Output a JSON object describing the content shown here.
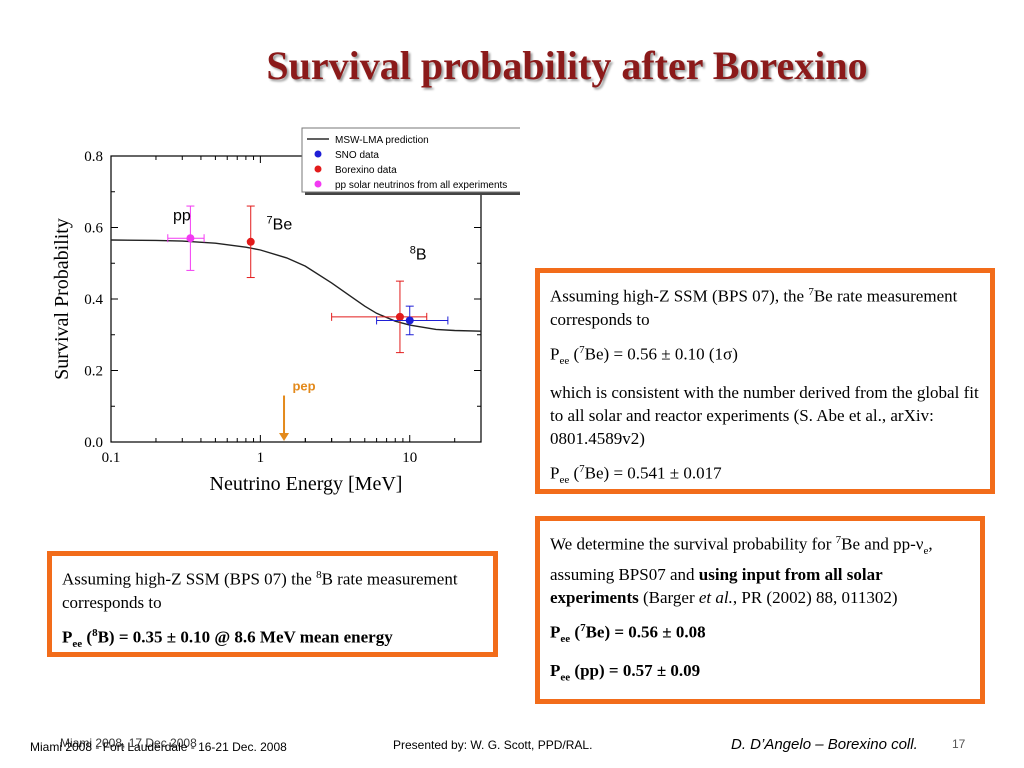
{
  "slide": {
    "title": "Survival probability after Borexino"
  },
  "chart_data": {
    "type": "scatter",
    "xscale": "log",
    "xlim": [
      0.1,
      30
    ],
    "ylim": [
      0.0,
      0.8
    ],
    "xlabel": "Neutrino Energy [MeV]",
    "ylabel": "Survival Probability",
    "xticks": [
      "0.1",
      "1",
      "10"
    ],
    "yticks": [
      "0.0",
      "0.2",
      "0.4",
      "0.6",
      "0.8"
    ],
    "legend_position": "top-right",
    "legend": [
      {
        "label": "MSW-LMA prediction",
        "kind": "line",
        "color": "#000000"
      },
      {
        "label": "SNO data",
        "kind": "dot",
        "color": "#1f1fd6"
      },
      {
        "label": "Borexino data",
        "kind": "dot",
        "color": "#e21b1b"
      },
      {
        "label": "pp solar neutrinos from all experiments",
        "kind": "dot",
        "color": "#f23af2"
      }
    ],
    "curve": {
      "name": "MSW-LMA prediction",
      "x": [
        0.1,
        0.2,
        0.3,
        0.5,
        0.8,
        1.0,
        1.5,
        2.0,
        3.0,
        4.0,
        5.0,
        6.0,
        8.0,
        10.0,
        15.0,
        20.0,
        30.0
      ],
      "y": [
        0.565,
        0.564,
        0.562,
        0.556,
        0.545,
        0.537,
        0.515,
        0.492,
        0.445,
        0.408,
        0.38,
        0.36,
        0.338,
        0.327,
        0.315,
        0.312,
        0.31
      ]
    },
    "points": [
      {
        "label": "pp",
        "x": 0.34,
        "y": 0.57,
        "yerr": [
          0.09,
          0.09
        ],
        "xerr": [
          0.1,
          0.08
        ],
        "color": "#f23af2"
      },
      {
        "label": "7Be",
        "x": 0.862,
        "y": 0.56,
        "yerr": [
          0.1,
          0.1
        ],
        "xerr": [
          0,
          0
        ],
        "color": "#e21b1b"
      },
      {
        "label": "8B",
        "x": 8.6,
        "y": 0.35,
        "yerr": [
          0.1,
          0.1
        ],
        "xerr": [
          5.6,
          4.4
        ],
        "color": "#e21b1b"
      },
      {
        "label": "",
        "x": 10.0,
        "y": 0.34,
        "yerr": [
          0.04,
          0.04
        ],
        "xerr": [
          4.0,
          8.0
        ],
        "color": "#1f1fd6"
      }
    ],
    "annotations": [
      {
        "text": "pp",
        "sup": "",
        "x": 0.26,
        "y": 0.62
      },
      {
        "text": "Be",
        "sup": "7",
        "x": 1.1,
        "y": 0.595
      },
      {
        "text": "B",
        "sup": "8",
        "x": 10.0,
        "y": 0.51
      }
    ],
    "arrow": {
      "label": "pep",
      "x": 1.44,
      "y_from": 0.13,
      "y_to": 0.0,
      "color": "#e38a1c"
    }
  },
  "box_be7": {
    "line1a": "Assuming high-Z SSM (BPS 07), the ",
    "line1sup": "7",
    "line1b": "Be rate measurement corresponds to",
    "line2a": "P",
    "line2sub": "ee",
    "line2b": " (",
    "line2sup": "7",
    "line2c": "Be) = 0.56 ± 0.10 (1σ)",
    "line3": "which is consistent with the number derived from the global fit to all solar and reactor experiments (S. Abe et al., arXiv: 0801.4589v2)",
    "line4a": "P",
    "line4sub": "ee",
    "line4b": " (",
    "line4sup": "7",
    "line4c": "Be) = 0.541 ± 0.017"
  },
  "box_all": {
    "line1a": "We determine the survival probability for ",
    "line1sup": "7",
    "line1b": "Be and pp-ν",
    "line1sub": "e",
    "line1c": ", assuming BPS07 and ",
    "line1bold": "using input from all solar experiments",
    "line1d": " (Barger ",
    "line1ital": "et al.",
    "line1e": ", PR (2002) 88, 011302)",
    "line2a": "P",
    "line2sub": "ee",
    "line2b": " (",
    "line2sup": "7",
    "line2c": "Be) = 0.56 ± 0.08",
    "line3a": "P",
    "line3sub": "ee",
    "line3b": " (pp) = 0.57 ± 0.09"
  },
  "box_b8": {
    "line1a": "Assuming high-Z SSM (BPS 07) the ",
    "line1sup": "8",
    "line1b": "B rate measurement corresponds to",
    "line2a": "P",
    "line2sub": "ee",
    "line2b": " (",
    "line2sup": "8",
    "line2c": "B) = 0.35 ± 0.10 @ 8.6 MeV mean energy"
  },
  "footer": {
    "left": "Miami 2008 - Fort Lauderdale - 16-21 Dec. 2008",
    "left_overlap": "Miami 2008, 17 Dec 2008",
    "center": "Presented by:  W. G. Scott, PPD/RAL.",
    "right": "D. D’Angelo – Borexino coll.",
    "page": "17"
  }
}
